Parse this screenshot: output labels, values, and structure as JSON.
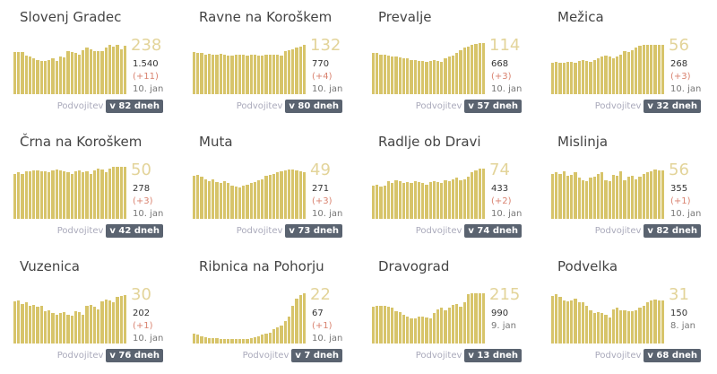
{
  "colors": {
    "bar": "#d7c46a",
    "badge": "#5a6370",
    "increase": "#d9826f"
  },
  "doubling_label": "Podvojitev",
  "cards": [
    {
      "name": "Slovenj Gradec",
      "active": "238",
      "total": "1.540",
      "increase": "(+11)",
      "date": "10. jan",
      "doubling": "v 82 dneh",
      "values": [
        78,
        78,
        78,
        72,
        70,
        66,
        64,
        62,
        62,
        64,
        66,
        62,
        70,
        68,
        80,
        78,
        76,
        74,
        82,
        86,
        84,
        80,
        80,
        80,
        86,
        92,
        88,
        92,
        84,
        90
      ]
    },
    {
      "name": "Ravne na Koroškem",
      "active": "132",
      "total": "770",
      "increase": "(+4)",
      "date": "10. jan",
      "doubling": "v 80 dneh",
      "values": [
        78,
        76,
        76,
        74,
        75,
        74,
        74,
        75,
        74,
        72,
        72,
        73,
        74,
        73,
        72,
        73,
        74,
        72,
        72,
        73,
        74,
        74,
        73,
        72,
        80,
        82,
        84,
        86,
        88,
        92
      ]
    },
    {
      "name": "Prevalje",
      "active": "114",
      "total": "668",
      "increase": "(+3)",
      "date": "10. jan",
      "doubling": "v 57 dneh",
      "values": [
        76,
        76,
        74,
        74,
        72,
        70,
        70,
        68,
        66,
        66,
        64,
        64,
        62,
        62,
        60,
        62,
        64,
        62,
        60,
        66,
        70,
        72,
        76,
        82,
        86,
        88,
        92,
        94,
        95,
        95
      ]
    },
    {
      "name": "Mežica",
      "active": "56",
      "total": "268",
      "increase": "(+3)",
      "date": "10. jan",
      "doubling": "v 32 dneh",
      "values": [
        58,
        60,
        58,
        58,
        60,
        60,
        58,
        62,
        64,
        62,
        60,
        64,
        66,
        70,
        72,
        70,
        66,
        70,
        74,
        80,
        78,
        82,
        86,
        90,
        92,
        92,
        92,
        92,
        92,
        92
      ]
    },
    {
      "name": "Črna na Koroškem",
      "active": "50",
      "total": "278",
      "increase": "(+3)",
      "date": "10. jan",
      "doubling": "v 42 dneh",
      "values": [
        84,
        86,
        84,
        88,
        88,
        90,
        90,
        88,
        88,
        86,
        90,
        92,
        90,
        88,
        86,
        84,
        88,
        90,
        86,
        88,
        84,
        90,
        94,
        92,
        86,
        94,
        96,
        96,
        96,
        96
      ]
    },
    {
      "name": "Muta",
      "active": "49",
      "total": "271",
      "increase": "(+3)",
      "date": "10. jan",
      "doubling": "v 73 dneh",
      "values": [
        80,
        82,
        78,
        74,
        70,
        74,
        68,
        66,
        70,
        66,
        62,
        60,
        58,
        62,
        64,
        66,
        68,
        72,
        74,
        80,
        82,
        84,
        86,
        88,
        90,
        92,
        92,
        90,
        88,
        86
      ]
    },
    {
      "name": "Radlje ob Dravi",
      "active": "74",
      "total": "433",
      "increase": "(+2)",
      "date": "10. jan",
      "doubling": "v 74 dneh",
      "values": [
        62,
        64,
        60,
        62,
        70,
        66,
        72,
        70,
        66,
        68,
        66,
        70,
        68,
        66,
        64,
        68,
        70,
        68,
        66,
        72,
        70,
        74,
        76,
        72,
        74,
        78,
        86,
        90,
        94,
        94
      ]
    },
    {
      "name": "Mislinja",
      "active": "56",
      "total": "355",
      "increase": "(+1)",
      "date": "10. jan",
      "doubling": "v 82 dneh",
      "values": [
        84,
        86,
        84,
        88,
        80,
        82,
        86,
        76,
        72,
        70,
        76,
        78,
        84,
        86,
        72,
        70,
        82,
        80,
        88,
        72,
        78,
        80,
        74,
        78,
        84,
        86,
        88,
        92,
        90,
        90
      ]
    },
    {
      "name": "Vuzenica",
      "active": "30",
      "total": "202",
      "increase": "(+1)",
      "date": "10. jan",
      "doubling": "v 76 dneh",
      "values": [
        78,
        80,
        74,
        76,
        70,
        72,
        68,
        70,
        60,
        62,
        56,
        54,
        56,
        58,
        54,
        52,
        60,
        58,
        54,
        70,
        72,
        68,
        64,
        78,
        82,
        80,
        76,
        86,
        88,
        90
      ]
    },
    {
      "name": "Ribnica na Pohorju",
      "active": "22",
      "total": "67",
      "increase": "(+1)",
      "date": "10. jan",
      "doubling": "v 7 dneh",
      "values": [
        18,
        16,
        14,
        12,
        10,
        10,
        10,
        9,
        9,
        8,
        8,
        8,
        8,
        8,
        9,
        10,
        12,
        14,
        16,
        18,
        20,
        26,
        30,
        34,
        42,
        50,
        70,
        84,
        90,
        94
      ]
    },
    {
      "name": "Dravograd",
      "active": "215",
      "total": "990",
      "increase": "",
      "date": "9. jan",
      "doubling": "v 13 dneh",
      "values": [
        68,
        70,
        70,
        70,
        68,
        66,
        60,
        58,
        54,
        50,
        46,
        46,
        50,
        50,
        48,
        46,
        56,
        64,
        66,
        62,
        66,
        72,
        74,
        68,
        76,
        92,
        94,
        94,
        94,
        94
      ]
    },
    {
      "name": "Podvelka",
      "active": "31",
      "total": "150",
      "increase": "",
      "date": "8. jan",
      "doubling": "v 68 dneh",
      "values": [
        88,
        92,
        86,
        80,
        78,
        80,
        84,
        76,
        76,
        70,
        62,
        56,
        58,
        56,
        54,
        48,
        64,
        66,
        62,
        62,
        60,
        60,
        62,
        66,
        70,
        76,
        80,
        82,
        80,
        80
      ]
    }
  ]
}
